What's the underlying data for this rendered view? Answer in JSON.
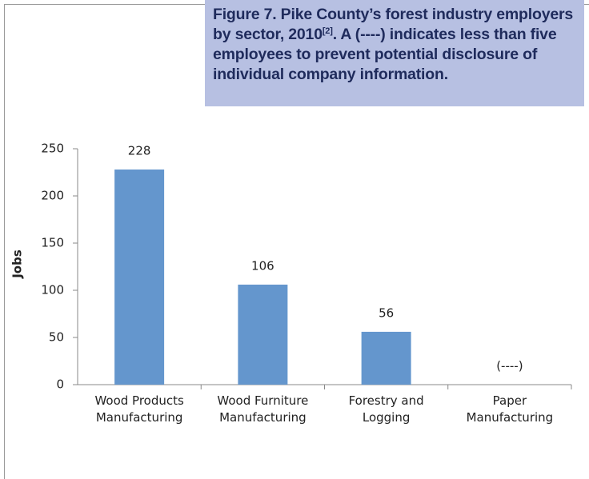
{
  "chart_data": {
    "type": "bar",
    "title": "Figure 7. Pike County’s forest industry employers by sector, 2010",
    "title_superscript": "[2]",
    "title_continued": ". A (----) indicates less than five employees to prevent potential disclosure of individual company information.",
    "y_label": "Jobs",
    "categories": [
      "Wood Products Manufacturing",
      "Wood Furniture Manufacturing",
      "Forestry and Logging",
      "Paper Manufacturing"
    ],
    "values": [
      228,
      106,
      56,
      null
    ],
    "value_labels": [
      "228",
      "106",
      "56",
      "(----)"
    ],
    "color": "#6496cd",
    "ylim": [
      0,
      250
    ],
    "yticks": [
      0,
      50,
      100,
      150,
      200,
      250
    ],
    "grid": false
  }
}
